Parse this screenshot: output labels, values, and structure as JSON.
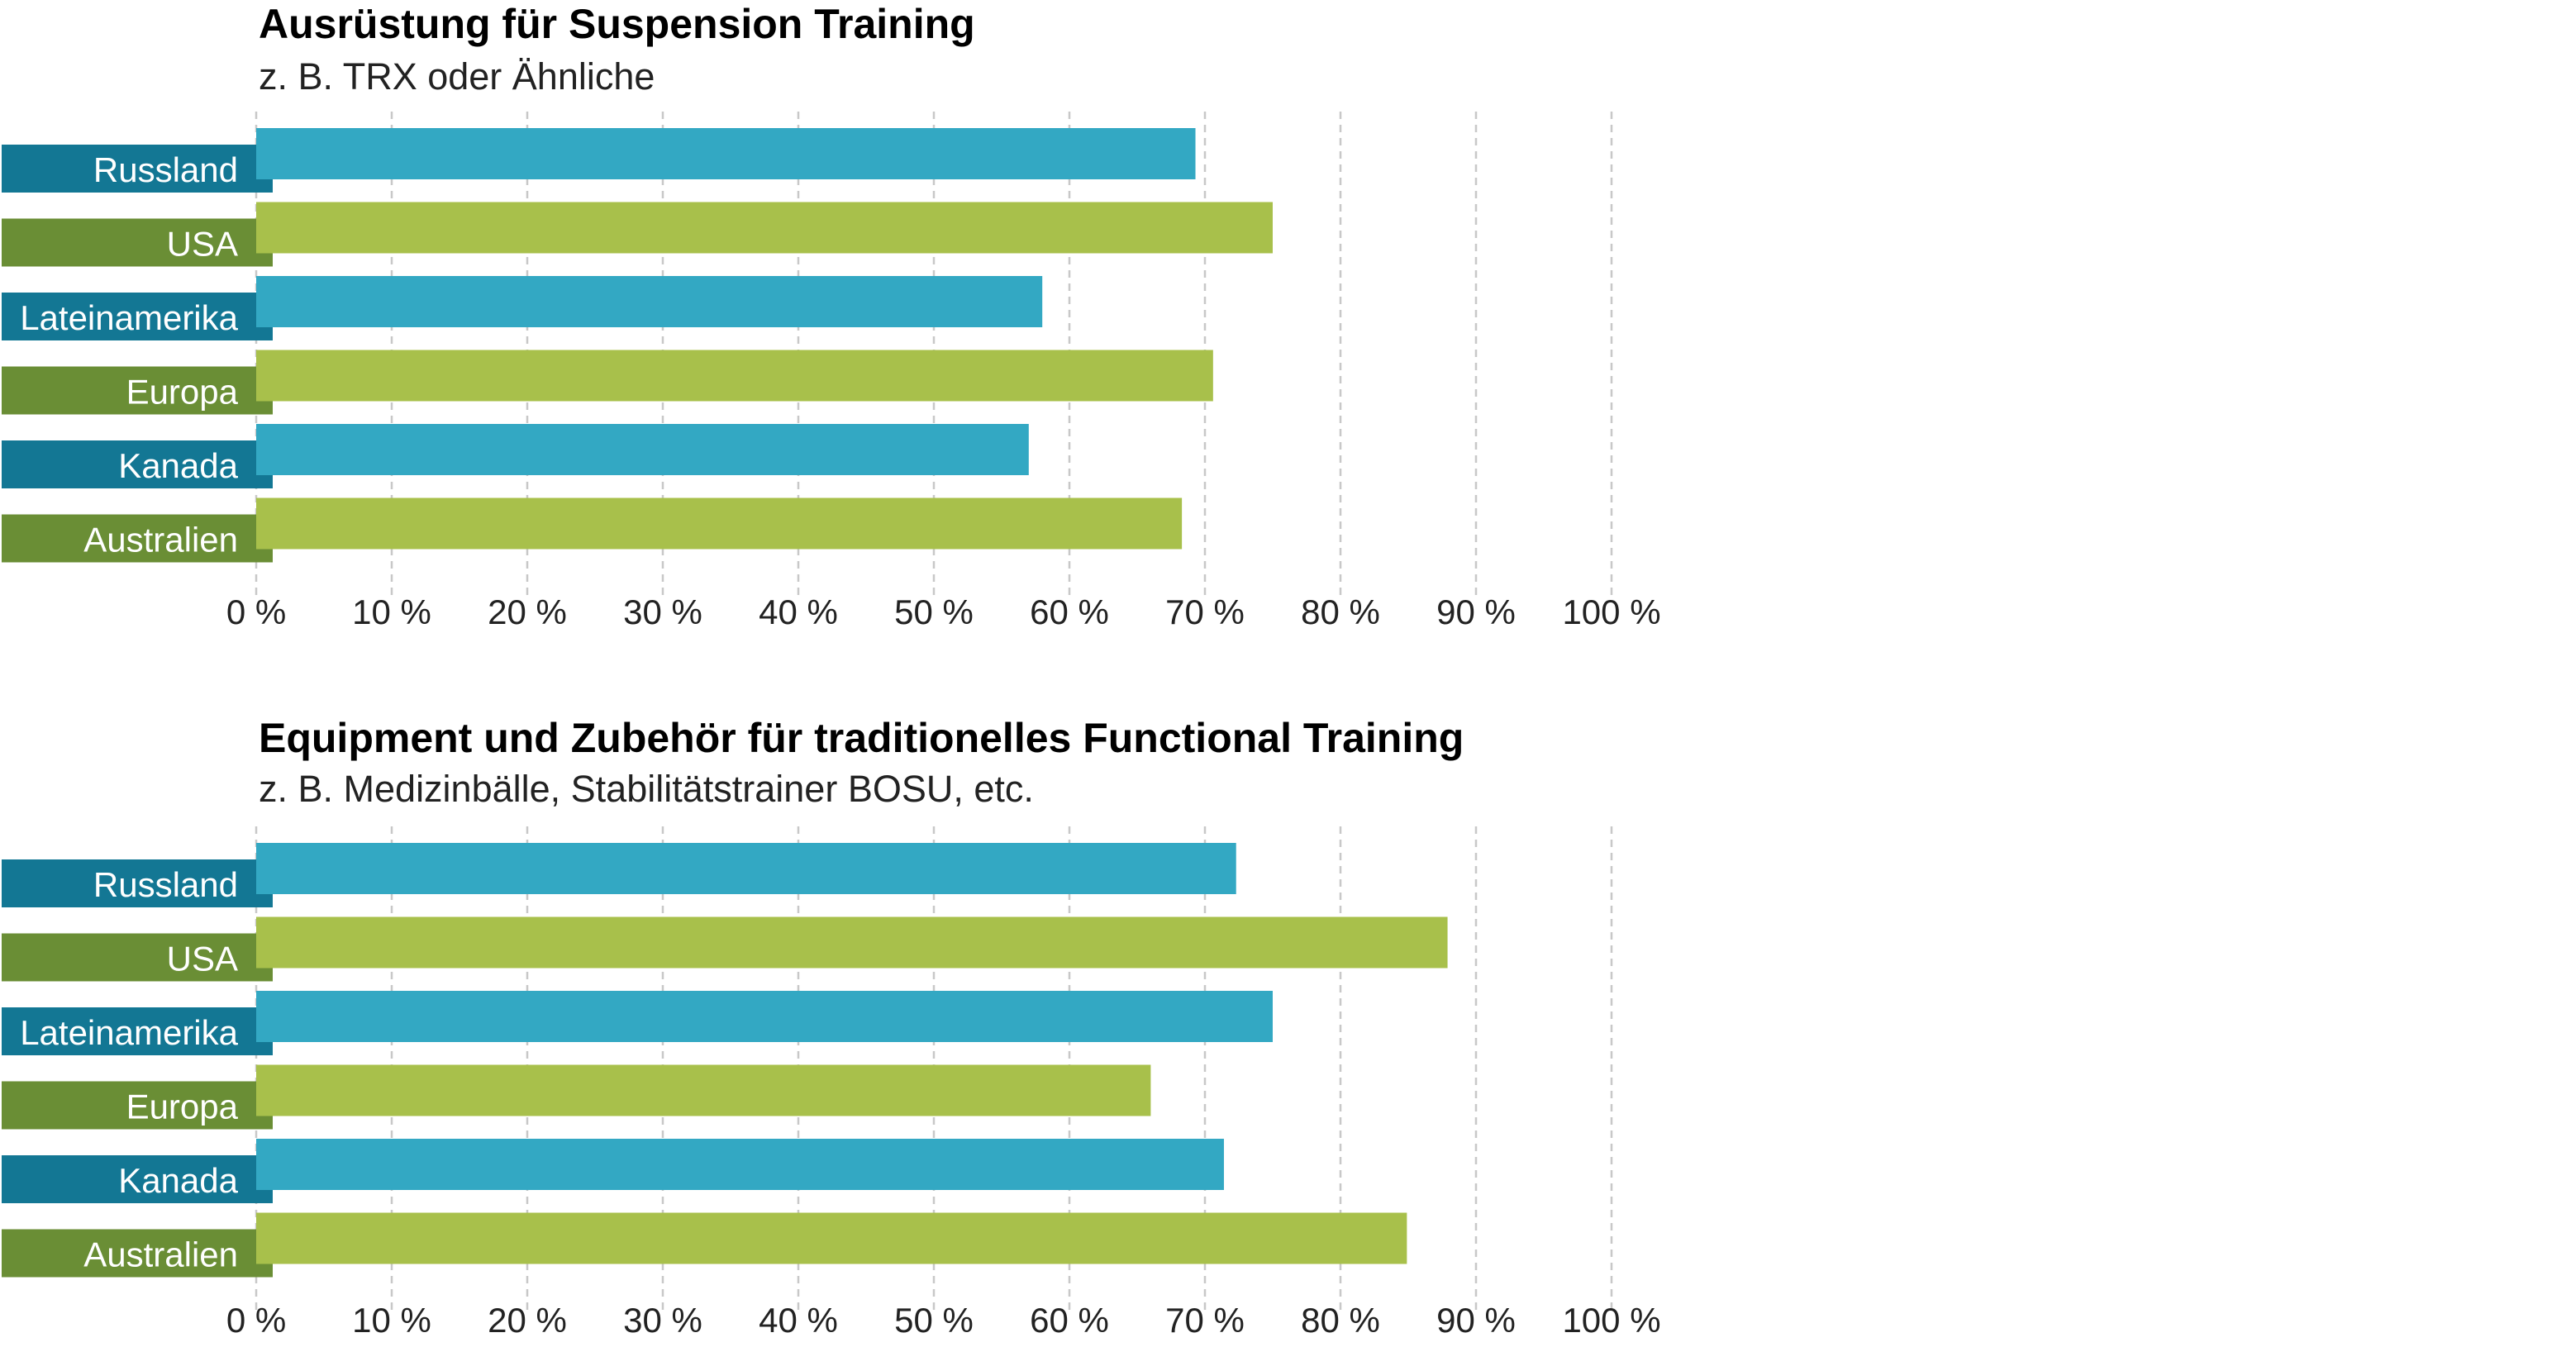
{
  "colors": {
    "bar_blue": "#33A8C3",
    "bar_green": "#A8C04B",
    "label_blue": "#137794",
    "label_green": "#6A8E35",
    "grid": "#c8c8c8",
    "title": "#000000",
    "label_text": "#ffffff"
  },
  "chart_data": [
    {
      "type": "bar",
      "orientation": "horizontal",
      "title": "Ausrüstung für Suspension Training",
      "subtitle": "z. B. TRX oder Ähnliche",
      "categories": [
        "Russland",
        "USA",
        "Lateinamerika",
        "Europa",
        "Kanada",
        "Australien"
      ],
      "values": [
        69.3,
        75.0,
        58.0,
        70.6,
        57.0,
        68.3
      ],
      "xlim": [
        0,
        100
      ],
      "xticks": [
        "0 %",
        "10 %",
        "20 %",
        "30 %",
        "40 %",
        "50 %",
        "60 %",
        "70 %",
        "80 %",
        "90 %",
        "100 %"
      ],
      "grid": true
    },
    {
      "type": "bar",
      "orientation": "horizontal",
      "title": "Equipment und Zubehör für traditionelles Functional Training",
      "subtitle": "z. B. Medizinbälle, Stabilitätstrainer BOSU, etc.",
      "categories": [
        "Russland",
        "USA",
        "Lateinamerika",
        "Europa",
        "Kanada",
        "Australien"
      ],
      "values": [
        72.3,
        87.9,
        75.0,
        66.0,
        71.4,
        84.9
      ],
      "xlim": [
        0,
        100
      ],
      "xticks": [
        "0 %",
        "10 %",
        "20 %",
        "30 %",
        "40 %",
        "50 %",
        "60 %",
        "70 %",
        "80 %",
        "90 %",
        "100 %"
      ],
      "grid": true
    }
  ]
}
